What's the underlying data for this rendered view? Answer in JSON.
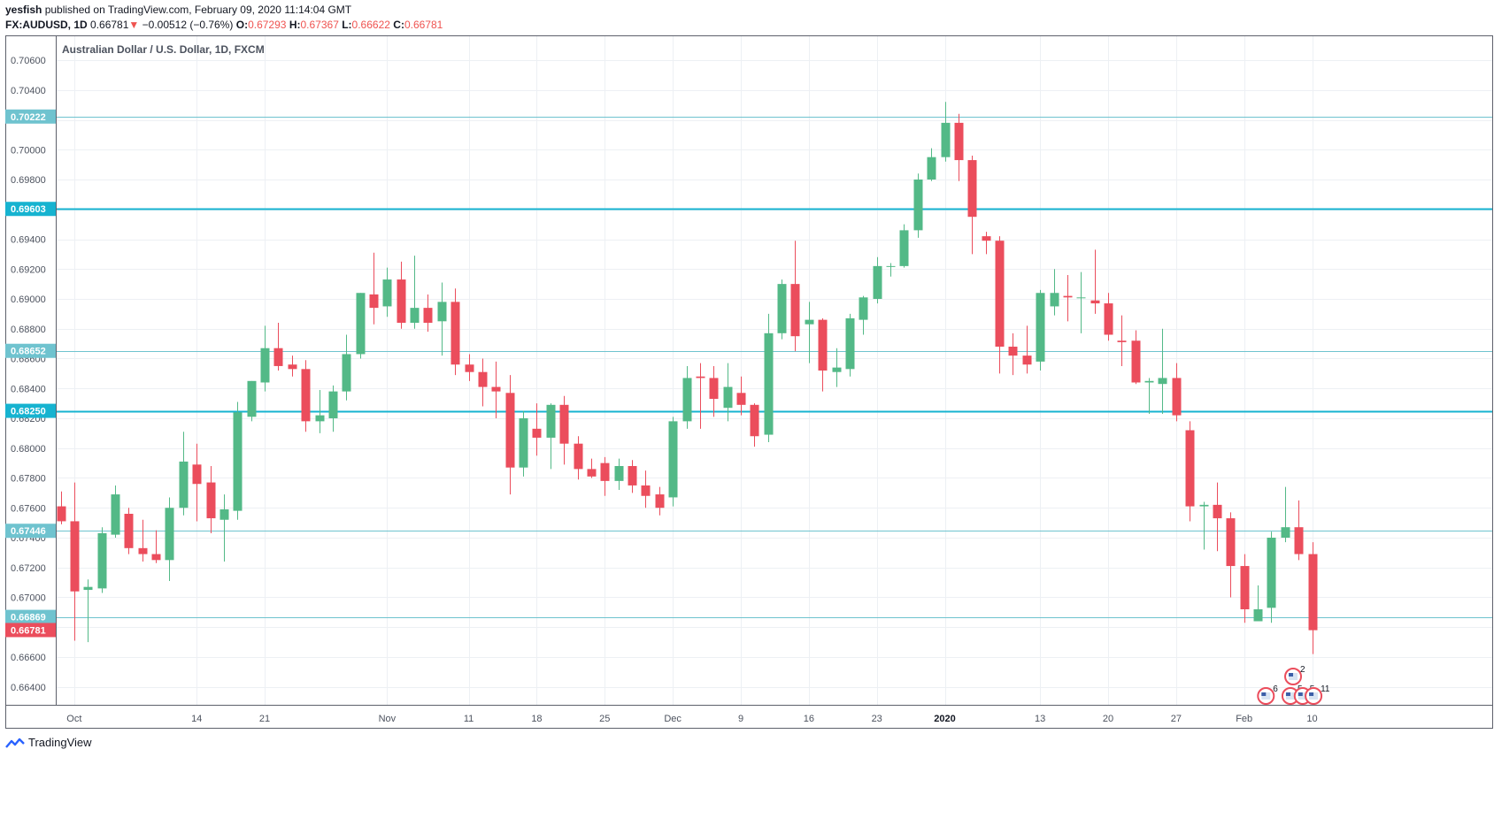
{
  "header": {
    "author": "yesfish",
    "published_text": "published on TradingView.com, February 09, 2020 11:14:04 GMT",
    "symbol": "FX:AUDUSD, 1D",
    "last": "0.66781",
    "arrow": "▼",
    "change": "−0.00512 (−0.76%)",
    "o_label": "O:",
    "o_value": "0.67293",
    "h_label": "H:",
    "h_value": "0.67367",
    "l_label": "L:",
    "l_value": "0.66622",
    "c_label": "C:",
    "c_value": "0.66781"
  },
  "chart_data": {
    "type": "candlestick",
    "title": "Australian Dollar / U.S. Dollar, 1D, FXCM",
    "ylim": [
      0.6628,
      0.7076
    ],
    "y_ticks": [
      "0.70600",
      "0.70400",
      "0.70200",
      "0.70000",
      "0.69800",
      "0.69600",
      "0.69400",
      "0.69200",
      "0.69000",
      "0.68800",
      "0.68600",
      "0.68400",
      "0.68200",
      "0.68000",
      "0.67800",
      "0.67600",
      "0.67400",
      "0.67200",
      "0.67000",
      "0.66800",
      "0.66600",
      "0.66400"
    ],
    "x_ticks": [
      {
        "label": "Oct",
        "i": 1
      },
      {
        "label": "14",
        "i": 10
      },
      {
        "label": "21",
        "i": 15
      },
      {
        "label": "Nov",
        "i": 24
      },
      {
        "label": "11",
        "i": 30
      },
      {
        "label": "18",
        "i": 35
      },
      {
        "label": "25",
        "i": 40
      },
      {
        "label": "Dec",
        "i": 45
      },
      {
        "label": "9",
        "i": 50
      },
      {
        "label": "16",
        "i": 55
      },
      {
        "label": "23",
        "i": 60
      },
      {
        "label": "2020",
        "i": 65,
        "bold": true
      },
      {
        "label": "13",
        "i": 72
      },
      {
        "label": "20",
        "i": 77
      },
      {
        "label": "27",
        "i": 82
      },
      {
        "label": "Feb",
        "i": 87
      },
      {
        "label": "10",
        "i": 92
      }
    ],
    "candles": [
      [
        0.6761,
        0.6771,
        0.6749,
        0.6751
      ],
      [
        0.6751,
        0.6777,
        0.6671,
        0.6704
      ],
      [
        0.6705,
        0.6712,
        0.667,
        0.6707
      ],
      [
        0.6706,
        0.6747,
        0.6703,
        0.6743
      ],
      [
        0.6742,
        0.6775,
        0.674,
        0.6769
      ],
      [
        0.6756,
        0.676,
        0.6729,
        0.6733
      ],
      [
        0.6733,
        0.6752,
        0.6724,
        0.6729
      ],
      [
        0.6729,
        0.6745,
        0.6723,
        0.6725
      ],
      [
        0.6725,
        0.6767,
        0.6711,
        0.676
      ],
      [
        0.676,
        0.6811,
        0.6755,
        0.6791
      ],
      [
        0.6789,
        0.6803,
        0.6751,
        0.6776
      ],
      [
        0.6777,
        0.6788,
        0.6743,
        0.6753
      ],
      [
        0.6752,
        0.6769,
        0.6724,
        0.6759
      ],
      [
        0.6758,
        0.6831,
        0.6752,
        0.6824
      ],
      [
        0.6821,
        0.6845,
        0.6818,
        0.6845
      ],
      [
        0.6844,
        0.6882,
        0.6838,
        0.6867
      ],
      [
        0.6867,
        0.6884,
        0.6852,
        0.6855
      ],
      [
        0.6856,
        0.6862,
        0.6848,
        0.6853
      ],
      [
        0.6853,
        0.6859,
        0.6811,
        0.6818
      ],
      [
        0.6818,
        0.6839,
        0.681,
        0.6822
      ],
      [
        0.682,
        0.6842,
        0.6811,
        0.6838
      ],
      [
        0.6838,
        0.6876,
        0.6832,
        0.6863
      ],
      [
        0.6863,
        0.6904,
        0.686,
        0.6904
      ],
      [
        0.6903,
        0.6931,
        0.6883,
        0.6894
      ],
      [
        0.6895,
        0.6921,
        0.6888,
        0.6913
      ],
      [
        0.6913,
        0.6925,
        0.688,
        0.6884
      ],
      [
        0.6884,
        0.6929,
        0.688,
        0.6894
      ],
      [
        0.6894,
        0.6903,
        0.6878,
        0.6884
      ],
      [
        0.6885,
        0.6911,
        0.6862,
        0.6898
      ],
      [
        0.6898,
        0.6907,
        0.6849,
        0.6856
      ],
      [
        0.6856,
        0.6863,
        0.6845,
        0.6851
      ],
      [
        0.6851,
        0.686,
        0.6828,
        0.6841
      ],
      [
        0.6841,
        0.6858,
        0.682,
        0.6838
      ],
      [
        0.6837,
        0.6849,
        0.6769,
        0.6787
      ],
      [
        0.6787,
        0.6825,
        0.6781,
        0.682
      ],
      [
        0.6813,
        0.683,
        0.6795,
        0.6807
      ],
      [
        0.6807,
        0.683,
        0.6786,
        0.6829
      ],
      [
        0.6829,
        0.6835,
        0.6789,
        0.6803
      ],
      [
        0.6803,
        0.6808,
        0.6779,
        0.6786
      ],
      [
        0.6786,
        0.6793,
        0.678,
        0.6781
      ],
      [
        0.679,
        0.6794,
        0.6768,
        0.6778
      ],
      [
        0.6778,
        0.6793,
        0.6772,
        0.6788
      ],
      [
        0.6788,
        0.6792,
        0.677,
        0.6775
      ],
      [
        0.6775,
        0.6785,
        0.676,
        0.6768
      ],
      [
        0.6769,
        0.6774,
        0.6755,
        0.676
      ],
      [
        0.6767,
        0.6821,
        0.6761,
        0.6818
      ],
      [
        0.6818,
        0.6855,
        0.6813,
        0.6847
      ],
      [
        0.6848,
        0.6857,
        0.6813,
        0.6847
      ],
      [
        0.6847,
        0.6855,
        0.6821,
        0.6833
      ],
      [
        0.6827,
        0.6857,
        0.6818,
        0.6841
      ],
      [
        0.6837,
        0.6848,
        0.6822,
        0.6829
      ],
      [
        0.6829,
        0.683,
        0.6801,
        0.6808
      ],
      [
        0.6809,
        0.689,
        0.6804,
        0.6877
      ],
      [
        0.6877,
        0.6913,
        0.6873,
        0.691
      ],
      [
        0.691,
        0.6939,
        0.6865,
        0.6875
      ],
      [
        0.6883,
        0.6898,
        0.6857,
        0.6886
      ],
      [
        0.6886,
        0.6887,
        0.6838,
        0.6852
      ],
      [
        0.6851,
        0.6867,
        0.6841,
        0.6854
      ],
      [
        0.6853,
        0.689,
        0.6848,
        0.6887
      ],
      [
        0.6886,
        0.6902,
        0.6876,
        0.6901
      ],
      [
        0.69,
        0.6928,
        0.6897,
        0.6922
      ],
      [
        0.6922,
        0.6924,
        0.6915,
        0.6922
      ],
      [
        0.6922,
        0.695,
        0.6921,
        0.6946
      ],
      [
        0.6946,
        0.6984,
        0.6941,
        0.698
      ],
      [
        0.698,
        0.7001,
        0.6979,
        0.6995
      ],
      [
        0.6995,
        0.7032,
        0.6992,
        0.7018
      ],
      [
        0.7018,
        0.7024,
        0.6979,
        0.6993
      ],
      [
        0.6993,
        0.6996,
        0.693,
        0.6955
      ],
      [
        0.6942,
        0.6945,
        0.693,
        0.6939
      ],
      [
        0.6939,
        0.6942,
        0.685,
        0.6868
      ],
      [
        0.6868,
        0.6877,
        0.6849,
        0.6862
      ],
      [
        0.6862,
        0.6882,
        0.685,
        0.6856
      ],
      [
        0.6858,
        0.6906,
        0.6852,
        0.6904
      ],
      [
        0.6895,
        0.692,
        0.6889,
        0.6904
      ],
      [
        0.6902,
        0.6916,
        0.6885,
        0.6901
      ],
      [
        0.6901,
        0.6918,
        0.6877,
        0.6901
      ],
      [
        0.6899,
        0.6933,
        0.689,
        0.6897
      ],
      [
        0.6897,
        0.6904,
        0.6872,
        0.6876
      ],
      [
        0.6872,
        0.6889,
        0.6855,
        0.6871
      ],
      [
        0.6872,
        0.6879,
        0.6843,
        0.6844
      ],
      [
        0.6844,
        0.6847,
        0.6823,
        0.6845
      ],
      [
        0.6843,
        0.688,
        0.6823,
        0.6847
      ],
      [
        0.6847,
        0.6857,
        0.6818,
        0.6822
      ],
      [
        0.6812,
        0.6818,
        0.6751,
        0.6761
      ],
      [
        0.6761,
        0.6764,
        0.6732,
        0.6762
      ],
      [
        0.6762,
        0.6777,
        0.6731,
        0.6753
      ],
      [
        0.6753,
        0.6757,
        0.67,
        0.6721
      ],
      [
        0.6721,
        0.6729,
        0.6683,
        0.6692
      ],
      [
        0.6684,
        0.6708,
        0.6684,
        0.6692
      ],
      [
        0.6693,
        0.6744,
        0.6683,
        0.674
      ],
      [
        0.674,
        0.6774,
        0.6737,
        0.6747
      ],
      [
        0.6747,
        0.6765,
        0.6725,
        0.6729
      ],
      [
        0.6729,
        0.6737,
        0.6662,
        0.6678
      ]
    ],
    "levels": [
      {
        "value": 0.70222,
        "label": "0.70222",
        "weight": "thin"
      },
      {
        "value": 0.69603,
        "label": "0.69603",
        "weight": "thick"
      },
      {
        "value": 0.68652,
        "label": "0.68652",
        "weight": "thin"
      },
      {
        "value": 0.6825,
        "label": "0.68250",
        "weight": "thick"
      },
      {
        "value": 0.67446,
        "label": "0.67446",
        "weight": "thin"
      },
      {
        "value": 0.66869,
        "label": "0.66869",
        "weight": "thin"
      }
    ],
    "last_price": {
      "value": 0.66781,
      "label": "0.66781"
    },
    "events": [
      {
        "i": 90.6,
        "row": "upper",
        "count": "2"
      },
      {
        "i": 88.6,
        "row": "lower",
        "count": "6"
      },
      {
        "i": 90.4,
        "row": "lower",
        "count": "5"
      },
      {
        "i": 91.3,
        "row": "lower",
        "count": "5"
      },
      {
        "i": 92.1,
        "row": "lower",
        "count": "11"
      }
    ],
    "colors": {
      "up": "#53b987",
      "down": "#eb4d5c",
      "level_thin": "#6fc3cf",
      "level_thick": "#16b3d0",
      "last": "#eb4d5c",
      "grid": "#edf0f4",
      "axis_text": "#4c525e"
    }
  },
  "footer": {
    "brand": "TradingView"
  }
}
